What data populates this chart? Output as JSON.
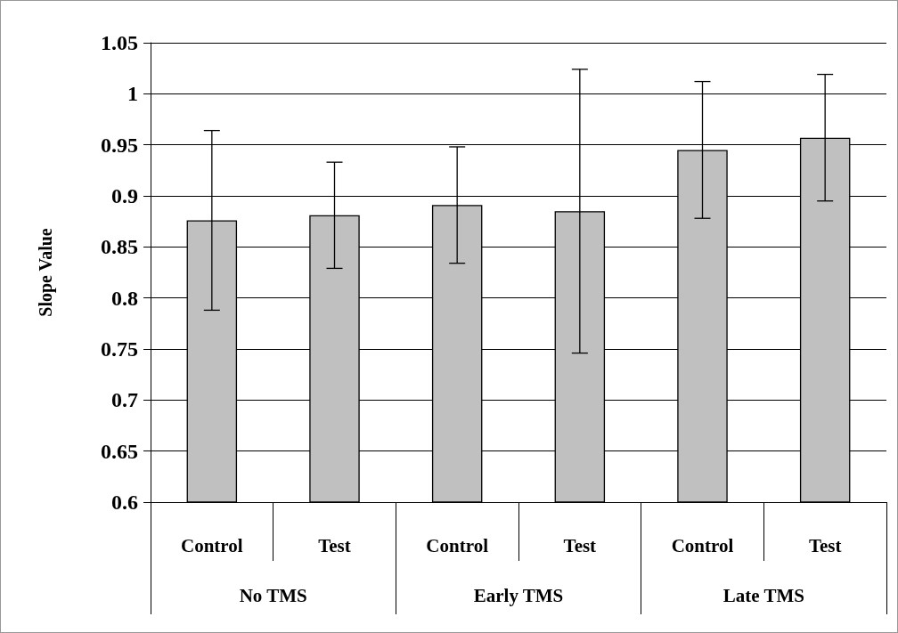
{
  "chart_data": {
    "type": "bar",
    "ylabel": "Slope Value",
    "categories": [
      "Control",
      "Test",
      "Control",
      "Test",
      "Control",
      "Test"
    ],
    "annotations": [
      "No TMS",
      "Early TMS",
      "Late TMS"
    ],
    "values": [
      0.876,
      0.881,
      0.891,
      0.885,
      0.945,
      0.957
    ],
    "errors": [
      0.088,
      0.052,
      0.057,
      0.139,
      0.067,
      0.062
    ],
    "color": "#c0c0c0",
    "ylim": [
      0.6,
      1.05
    ],
    "yticks": [
      0.6,
      0.65,
      0.7,
      0.75,
      0.8,
      0.85,
      0.9,
      0.95,
      1,
      1.05
    ],
    "grid": true
  }
}
